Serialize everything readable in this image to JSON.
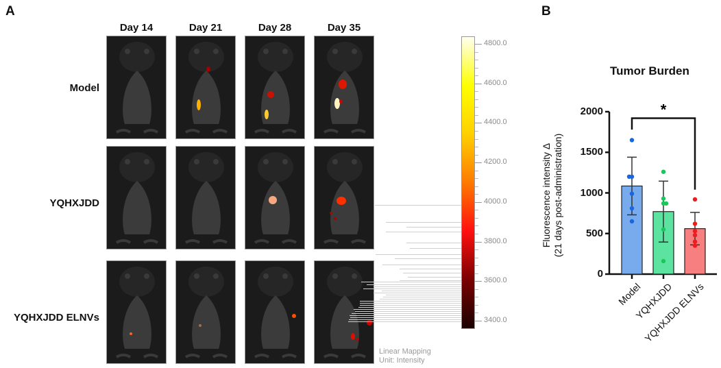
{
  "panel_a": {
    "letter": "A",
    "columns": [
      "Day 14",
      "Day 21",
      "Day 28",
      "Day 35"
    ],
    "rows": [
      "Model",
      "YQHXJDD",
      "YQHXJDD ELNVs"
    ],
    "colorbar": {
      "ticks": [
        "4800.0",
        "4600.0",
        "4400.0",
        "4200.0",
        "4000.0",
        "3800.0",
        "3600.0",
        "3400.0"
      ],
      "min": 3400,
      "max": 4800,
      "gradient_colors": [
        "#1a0000",
        "#7a0000",
        "#ff1010",
        "#ff7a00",
        "#ffd000",
        "#ffff00",
        "#fffff0"
      ],
      "footer_line1": "Linear Mapping",
      "footer_line2": "Unit: Intensity"
    }
  },
  "panel_b": {
    "letter": "B"
  },
  "chart_data": {
    "type": "bar",
    "title": "Tumor Burden",
    "xlabel": "",
    "ylabel_line1": "Fluorescence intensity Δ",
    "ylabel_line2": "(21 days post-administration)",
    "ylim": [
      0,
      2000
    ],
    "yticks": [
      "0",
      "500",
      "1000",
      "1500",
      "2000"
    ],
    "categories": [
      "Model",
      "YQHXJDD",
      "YQHXJDD ELNVs"
    ],
    "values": [
      1085,
      770,
      560
    ],
    "error_sd": [
      355,
      375,
      200
    ],
    "colors": [
      "#78aaee",
      "#5de3a0",
      "#f77f7f"
    ],
    "point_colors": [
      "#1a66e0",
      "#18c85a",
      "#ee1c1c"
    ],
    "points": [
      [
        1650,
        1200,
        1200,
        990,
        810,
        650
      ],
      [
        1260,
        930,
        870,
        870,
        550,
        160
      ],
      [
        920,
        620,
        530,
        480,
        400,
        350
      ]
    ],
    "significance": {
      "from": "Model",
      "to": "YQHXJDD ELNVs",
      "label": "*"
    },
    "grid": false
  }
}
